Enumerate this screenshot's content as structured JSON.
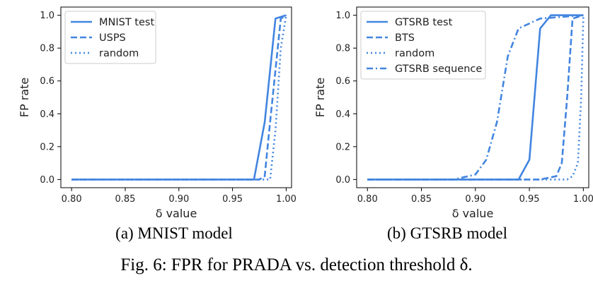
{
  "chart_data": [
    {
      "type": "line",
      "xlabel": "δ value",
      "ylabel": "FP rate",
      "xlim": [
        0.79,
        1.005
      ],
      "ylim": [
        -0.05,
        1.05
      ],
      "xticks": [
        "0.80",
        "0.85",
        "0.90",
        "0.95",
        "1.00"
      ],
      "yticks": [
        "0.0",
        "0.2",
        "0.4",
        "0.6",
        "0.8",
        "1.0"
      ],
      "grid": false,
      "legend": "top-left",
      "color": "#4285e0",
      "series": [
        {
          "name": "MNIST test",
          "style": "solid",
          "x": [
            0.8,
            0.97,
            0.98,
            0.99,
            1.0
          ],
          "y": [
            0.0,
            0.0,
            0.35,
            0.98,
            1.0
          ]
        },
        {
          "name": "USPS",
          "style": "dashed",
          "x": [
            0.8,
            0.975,
            0.98,
            0.985,
            0.995,
            1.0
          ],
          "y": [
            0.0,
            0.0,
            0.02,
            0.35,
            0.98,
            1.0
          ]
        },
        {
          "name": "random",
          "style": "dotted",
          "x": [
            0.8,
            0.985,
            0.99,
            0.995,
            1.0
          ],
          "y": [
            0.0,
            0.0,
            0.3,
            0.8,
            1.0
          ]
        }
      ],
      "caption": "(a) MNIST model"
    },
    {
      "type": "line",
      "xlabel": "δ value",
      "ylabel": "FP rate",
      "xlim": [
        0.79,
        1.005
      ],
      "ylim": [
        -0.05,
        1.05
      ],
      "xticks": [
        "0.80",
        "0.85",
        "0.90",
        "0.95",
        "1.00"
      ],
      "yticks": [
        "0.0",
        "0.2",
        "0.4",
        "0.6",
        "0.8",
        "1.0"
      ],
      "grid": false,
      "legend": "top-left",
      "color": "#4285e0",
      "series": [
        {
          "name": "GTSRB test",
          "style": "solid",
          "x": [
            0.8,
            0.94,
            0.95,
            0.96,
            0.97,
            1.0
          ],
          "y": [
            0.0,
            0.0,
            0.12,
            0.92,
            1.0,
            1.0
          ]
        },
        {
          "name": "BTS",
          "style": "dashed",
          "x": [
            0.8,
            0.96,
            0.975,
            0.98,
            0.985,
            0.99,
            1.0
          ],
          "y": [
            0.0,
            0.0,
            0.02,
            0.1,
            0.5,
            0.98,
            1.0
          ]
        },
        {
          "name": "random",
          "style": "dotted",
          "x": [
            0.8,
            0.985,
            0.99,
            0.995,
            0.998,
            1.0
          ],
          "y": [
            0.0,
            0.0,
            0.02,
            0.1,
            0.5,
            1.0
          ]
        },
        {
          "name": "GTSRB sequence",
          "style": "dashdot",
          "x": [
            0.8,
            0.88,
            0.9,
            0.91,
            0.92,
            0.93,
            0.94,
            0.96,
            1.0
          ],
          "y": [
            0.0,
            0.0,
            0.03,
            0.12,
            0.35,
            0.75,
            0.92,
            0.98,
            1.0
          ]
        }
      ],
      "caption": "(b) GTSRB model"
    }
  ],
  "figure_caption": "Fig. 6:  FPR for PRADA vs. detection threshold δ."
}
